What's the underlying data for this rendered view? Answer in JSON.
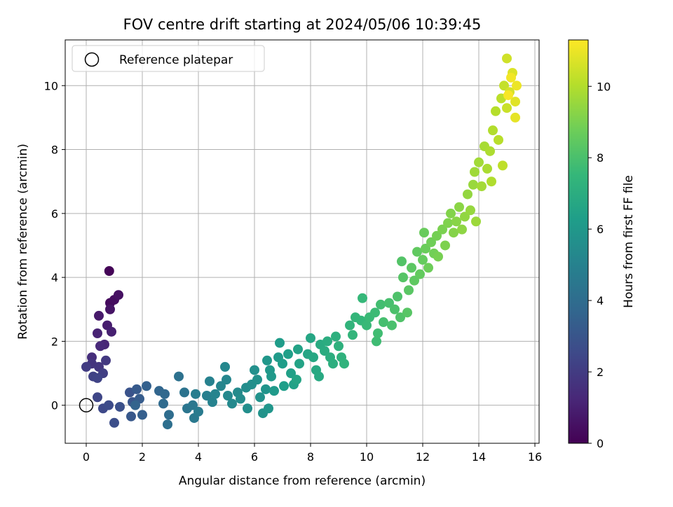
{
  "chart_data": {
    "type": "scatter",
    "title": "FOV centre drift starting at 2024/05/06 10:39:45",
    "xlabel": "Angular distance from reference (arcmin)",
    "ylabel": "Rotation from reference (arcmin)",
    "xlim": [
      -0.75,
      16.15
    ],
    "ylim": [
      -1.19,
      11.43
    ],
    "xticks": [
      "0",
      "2",
      "4",
      "6",
      "8",
      "10",
      "12",
      "14",
      "16"
    ],
    "yticks": [
      "0",
      "2",
      "4",
      "6",
      "8",
      "10"
    ],
    "grid": true,
    "legend": {
      "position": "top-left",
      "entries": [
        "Reference platepar"
      ]
    },
    "reference_point": {
      "x": 0,
      "y": 0
    },
    "colorbar": {
      "label": "Hours from first FF file",
      "range": [
        0,
        11.3
      ],
      "ticks": [
        "0",
        "2",
        "4",
        "6",
        "8",
        "10"
      ],
      "colormap": "viridis",
      "colors": [
        "#440154",
        "#482878",
        "#3e4989",
        "#31688e",
        "#26828e",
        "#1f9e89",
        "#35b779",
        "#6ece58",
        "#b5de2b",
        "#fde725"
      ]
    },
    "series": [
      {
        "points": [
          {
            "x": 0.82,
            "y": 4.2,
            "h": 0.1
          },
          {
            "x": 0.85,
            "y": 3.2,
            "h": 0.3
          },
          {
            "x": 1.0,
            "y": 3.3,
            "h": 0.4
          },
          {
            "x": 1.15,
            "y": 3.45,
            "h": 0.5
          },
          {
            "x": 0.85,
            "y": 3.0,
            "h": 0.6
          },
          {
            "x": 0.45,
            "y": 2.8,
            "h": 0.8
          },
          {
            "x": 0.75,
            "y": 2.5,
            "h": 0.9
          },
          {
            "x": 0.9,
            "y": 2.3,
            "h": 1.0
          },
          {
            "x": 0.4,
            "y": 2.25,
            "h": 1.1
          },
          {
            "x": 0.65,
            "y": 1.9,
            "h": 1.2
          },
          {
            "x": 0.5,
            "y": 1.85,
            "h": 1.3
          },
          {
            "x": 0.2,
            "y": 1.5,
            "h": 1.5
          },
          {
            "x": 0.2,
            "y": 1.3,
            "h": 1.7
          },
          {
            "x": 0.45,
            "y": 1.2,
            "h": 1.8
          },
          {
            "x": 0.7,
            "y": 1.4,
            "h": 1.9
          },
          {
            "x": 0.0,
            "y": 1.2,
            "h": 2.0
          },
          {
            "x": 0.6,
            "y": 1.0,
            "h": 2.1
          },
          {
            "x": 0.25,
            "y": 0.9,
            "h": 2.2
          },
          {
            "x": 0.4,
            "y": 0.85,
            "h": 2.3
          },
          {
            "x": 0.4,
            "y": 0.25,
            "h": 2.4
          },
          {
            "x": 0.6,
            "y": -0.1,
            "h": 2.5
          },
          {
            "x": 0.8,
            "y": 0.0,
            "h": 2.6
          },
          {
            "x": 1.0,
            "y": -0.55,
            "h": 2.7
          },
          {
            "x": 1.2,
            "y": -0.05,
            "h": 2.8
          },
          {
            "x": 1.55,
            "y": 0.4,
            "h": 2.9
          },
          {
            "x": 1.65,
            "y": 0.1,
            "h": 3.0
          },
          {
            "x": 1.6,
            "y": -0.35,
            "h": 3.1
          },
          {
            "x": 1.8,
            "y": 0.5,
            "h": 3.2
          },
          {
            "x": 1.9,
            "y": 0.2,
            "h": 3.3
          },
          {
            "x": 2.0,
            "y": -0.3,
            "h": 3.4
          },
          {
            "x": 2.15,
            "y": 0.6,
            "h": 3.5
          },
          {
            "x": 1.75,
            "y": 0.0,
            "h": 3.6
          },
          {
            "x": 2.6,
            "y": 0.45,
            "h": 3.7
          },
          {
            "x": 2.8,
            "y": 0.35,
            "h": 3.8
          },
          {
            "x": 2.75,
            "y": 0.05,
            "h": 3.9
          },
          {
            "x": 2.95,
            "y": -0.3,
            "h": 4.0
          },
          {
            "x": 2.9,
            "y": -0.6,
            "h": 4.1
          },
          {
            "x": 3.3,
            "y": 0.9,
            "h": 4.2
          },
          {
            "x": 3.5,
            "y": 0.4,
            "h": 4.3
          },
          {
            "x": 3.6,
            "y": -0.1,
            "h": 4.4
          },
          {
            "x": 3.8,
            "y": 0.0,
            "h": 4.5
          },
          {
            "x": 3.85,
            "y": -0.4,
            "h": 4.6
          },
          {
            "x": 4.0,
            "y": -0.2,
            "h": 4.7
          },
          {
            "x": 3.9,
            "y": 0.35,
            "h": 4.8
          },
          {
            "x": 4.3,
            "y": 0.3,
            "h": 4.9
          },
          {
            "x": 4.4,
            "y": 0.75,
            "h": 4.95
          },
          {
            "x": 4.5,
            "y": 0.1,
            "h": 5.0
          },
          {
            "x": 4.6,
            "y": 0.35,
            "h": 5.1
          },
          {
            "x": 4.8,
            "y": 0.6,
            "h": 5.15
          },
          {
            "x": 5.0,
            "y": 0.8,
            "h": 5.2
          },
          {
            "x": 4.95,
            "y": 1.2,
            "h": 5.25
          },
          {
            "x": 5.05,
            "y": 0.3,
            "h": 5.3
          },
          {
            "x": 5.2,
            "y": 0.05,
            "h": 5.35
          },
          {
            "x": 5.4,
            "y": 0.4,
            "h": 5.4
          },
          {
            "x": 5.5,
            "y": 0.2,
            "h": 5.45
          },
          {
            "x": 5.7,
            "y": 0.55,
            "h": 5.5
          },
          {
            "x": 5.75,
            "y": -0.1,
            "h": 5.55
          },
          {
            "x": 5.9,
            "y": 0.65,
            "h": 5.6
          },
          {
            "x": 6.0,
            "y": 1.1,
            "h": 5.65
          },
          {
            "x": 6.1,
            "y": 0.8,
            "h": 5.7
          },
          {
            "x": 6.2,
            "y": 0.25,
            "h": 5.75
          },
          {
            "x": 6.3,
            "y": -0.25,
            "h": 5.8
          },
          {
            "x": 6.4,
            "y": 0.5,
            "h": 5.85
          },
          {
            "x": 6.5,
            "y": -0.1,
            "h": 5.9
          },
          {
            "x": 6.45,
            "y": 1.4,
            "h": 5.95
          },
          {
            "x": 6.55,
            "y": 1.1,
            "h": 6.0
          },
          {
            "x": 6.6,
            "y": 0.9,
            "h": 6.05
          },
          {
            "x": 6.7,
            "y": 0.45,
            "h": 6.1
          },
          {
            "x": 6.85,
            "y": 1.5,
            "h": 6.15
          },
          {
            "x": 6.9,
            "y": 1.95,
            "h": 6.2
          },
          {
            "x": 7.0,
            "y": 1.3,
            "h": 6.25
          },
          {
            "x": 7.05,
            "y": 0.6,
            "h": 6.3
          },
          {
            "x": 7.2,
            "y": 1.6,
            "h": 6.35
          },
          {
            "x": 7.3,
            "y": 1.0,
            "h": 6.4
          },
          {
            "x": 7.4,
            "y": 0.65,
            "h": 6.45
          },
          {
            "x": 7.55,
            "y": 1.75,
            "h": 6.5
          },
          {
            "x": 7.6,
            "y": 1.3,
            "h": 6.55
          },
          {
            "x": 7.5,
            "y": 0.8,
            "h": 6.6
          },
          {
            "x": 7.9,
            "y": 1.6,
            "h": 6.65
          },
          {
            "x": 8.0,
            "y": 2.1,
            "h": 6.7
          },
          {
            "x": 8.1,
            "y": 1.5,
            "h": 6.75
          },
          {
            "x": 8.2,
            "y": 1.1,
            "h": 6.8
          },
          {
            "x": 8.3,
            "y": 0.9,
            "h": 6.85
          },
          {
            "x": 8.35,
            "y": 1.9,
            "h": 6.9
          },
          {
            "x": 8.5,
            "y": 1.7,
            "h": 6.95
          },
          {
            "x": 8.6,
            "y": 2.0,
            "h": 7.0
          },
          {
            "x": 8.7,
            "y": 1.5,
            "h": 7.05
          },
          {
            "x": 8.8,
            "y": 1.3,
            "h": 7.1
          },
          {
            "x": 8.9,
            "y": 2.15,
            "h": 7.15
          },
          {
            "x": 9.0,
            "y": 1.85,
            "h": 7.2
          },
          {
            "x": 9.1,
            "y": 1.5,
            "h": 7.25
          },
          {
            "x": 9.2,
            "y": 1.3,
            "h": 7.3
          },
          {
            "x": 9.4,
            "y": 2.5,
            "h": 7.35
          },
          {
            "x": 9.5,
            "y": 2.2,
            "h": 7.4
          },
          {
            "x": 9.6,
            "y": 2.75,
            "h": 7.45
          },
          {
            "x": 9.8,
            "y": 2.65,
            "h": 7.5
          },
          {
            "x": 9.85,
            "y": 3.35,
            "h": 7.55
          },
          {
            "x": 10.0,
            "y": 2.5,
            "h": 7.6
          },
          {
            "x": 10.1,
            "y": 2.75,
            "h": 7.65
          },
          {
            "x": 10.3,
            "y": 2.9,
            "h": 7.7
          },
          {
            "x": 10.35,
            "y": 2.0,
            "h": 7.75
          },
          {
            "x": 10.4,
            "y": 2.25,
            "h": 7.8
          },
          {
            "x": 10.5,
            "y": 3.15,
            "h": 7.85
          },
          {
            "x": 10.6,
            "y": 2.6,
            "h": 7.9
          },
          {
            "x": 10.8,
            "y": 3.2,
            "h": 7.95
          },
          {
            "x": 10.9,
            "y": 2.5,
            "h": 8.0
          },
          {
            "x": 11.0,
            "y": 3.0,
            "h": 8.05
          },
          {
            "x": 11.1,
            "y": 3.4,
            "h": 8.1
          },
          {
            "x": 11.2,
            "y": 2.75,
            "h": 8.15
          },
          {
            "x": 11.25,
            "y": 4.5,
            "h": 8.2
          },
          {
            "x": 11.3,
            "y": 4.0,
            "h": 8.25
          },
          {
            "x": 11.45,
            "y": 2.9,
            "h": 8.3
          },
          {
            "x": 11.5,
            "y": 3.6,
            "h": 8.35
          },
          {
            "x": 11.6,
            "y": 4.3,
            "h": 8.4
          },
          {
            "x": 11.7,
            "y": 3.9,
            "h": 8.45
          },
          {
            "x": 11.8,
            "y": 4.8,
            "h": 8.5
          },
          {
            "x": 11.9,
            "y": 4.1,
            "h": 8.55
          },
          {
            "x": 12.0,
            "y": 4.55,
            "h": 8.6
          },
          {
            "x": 12.05,
            "y": 5.4,
            "h": 8.65
          },
          {
            "x": 12.1,
            "y": 4.9,
            "h": 8.7
          },
          {
            "x": 12.2,
            "y": 4.3,
            "h": 8.75
          },
          {
            "x": 12.3,
            "y": 5.1,
            "h": 8.8
          },
          {
            "x": 12.4,
            "y": 4.75,
            "h": 8.85
          },
          {
            "x": 12.5,
            "y": 5.3,
            "h": 8.9
          },
          {
            "x": 12.55,
            "y": 4.65,
            "h": 8.95
          },
          {
            "x": 12.7,
            "y": 5.5,
            "h": 9.0
          },
          {
            "x": 12.8,
            "y": 5.0,
            "h": 9.05
          },
          {
            "x": 12.9,
            "y": 5.7,
            "h": 9.1
          },
          {
            "x": 13.0,
            "y": 6.0,
            "h": 9.15
          },
          {
            "x": 13.1,
            "y": 5.4,
            "h": 9.2
          },
          {
            "x": 13.2,
            "y": 5.75,
            "h": 9.25
          },
          {
            "x": 13.3,
            "y": 6.2,
            "h": 9.3
          },
          {
            "x": 13.4,
            "y": 5.5,
            "h": 9.35
          },
          {
            "x": 13.5,
            "y": 5.9,
            "h": 9.4
          },
          {
            "x": 13.6,
            "y": 6.6,
            "h": 9.45
          },
          {
            "x": 13.7,
            "y": 6.1,
            "h": 9.5
          },
          {
            "x": 13.8,
            "y": 6.9,
            "h": 9.55
          },
          {
            "x": 13.9,
            "y": 5.75,
            "h": 9.6
          },
          {
            "x": 13.85,
            "y": 7.3,
            "h": 9.65
          },
          {
            "x": 14.0,
            "y": 7.6,
            "h": 9.7
          },
          {
            "x": 14.1,
            "y": 6.85,
            "h": 9.75
          },
          {
            "x": 14.2,
            "y": 8.1,
            "h": 9.8
          },
          {
            "x": 14.3,
            "y": 7.4,
            "h": 9.85
          },
          {
            "x": 14.4,
            "y": 7.95,
            "h": 9.9
          },
          {
            "x": 14.45,
            "y": 7.0,
            "h": 9.95
          },
          {
            "x": 14.5,
            "y": 8.6,
            "h": 10.0
          },
          {
            "x": 14.6,
            "y": 9.2,
            "h": 10.05
          },
          {
            "x": 14.7,
            "y": 8.3,
            "h": 10.1
          },
          {
            "x": 14.8,
            "y": 9.6,
            "h": 10.15
          },
          {
            "x": 14.85,
            "y": 7.5,
            "h": 10.2
          },
          {
            "x": 14.9,
            "y": 10.0,
            "h": 10.3
          },
          {
            "x": 15.0,
            "y": 9.3,
            "h": 10.4
          },
          {
            "x": 15.0,
            "y": 10.85,
            "h": 10.5
          },
          {
            "x": 15.1,
            "y": 9.8,
            "h": 10.6
          },
          {
            "x": 15.2,
            "y": 10.4,
            "h": 10.7
          },
          {
            "x": 15.3,
            "y": 9.5,
            "h": 10.8
          },
          {
            "x": 15.3,
            "y": 9.0,
            "h": 10.9
          },
          {
            "x": 15.35,
            "y": 10.0,
            "h": 11.0
          },
          {
            "x": 15.15,
            "y": 10.25,
            "h": 11.1
          },
          {
            "x": 15.05,
            "y": 9.7,
            "h": 11.2
          }
        ]
      }
    ]
  }
}
